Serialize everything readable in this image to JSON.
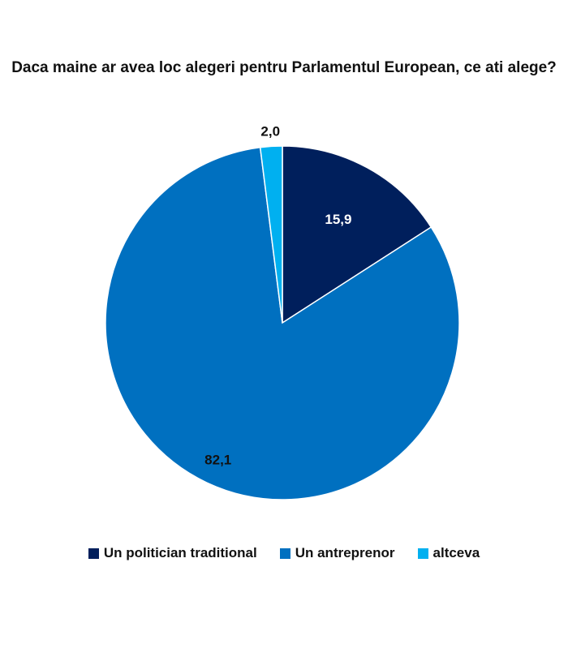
{
  "chart_data": {
    "type": "pie",
    "title": "Daca maine ar avea loc alegeri pentru Parlamentul European, ce ati alege?",
    "slices": [
      {
        "label": "Un politician traditional",
        "value": 15.9,
        "display": "15,9",
        "color": "#001f5c",
        "label_color": "#ffffff"
      },
      {
        "label": "Un antreprenor",
        "value": 82.1,
        "display": "82,1",
        "color": "#0070c0",
        "label_color": "#111111"
      },
      {
        "label": "altceva",
        "value": 2.0,
        "display": "2,0",
        "color": "#00b0f0",
        "label_color": "#111111"
      }
    ],
    "start_angle": "12 o'clock",
    "direction": "clockwise",
    "legend_position": "bottom"
  }
}
